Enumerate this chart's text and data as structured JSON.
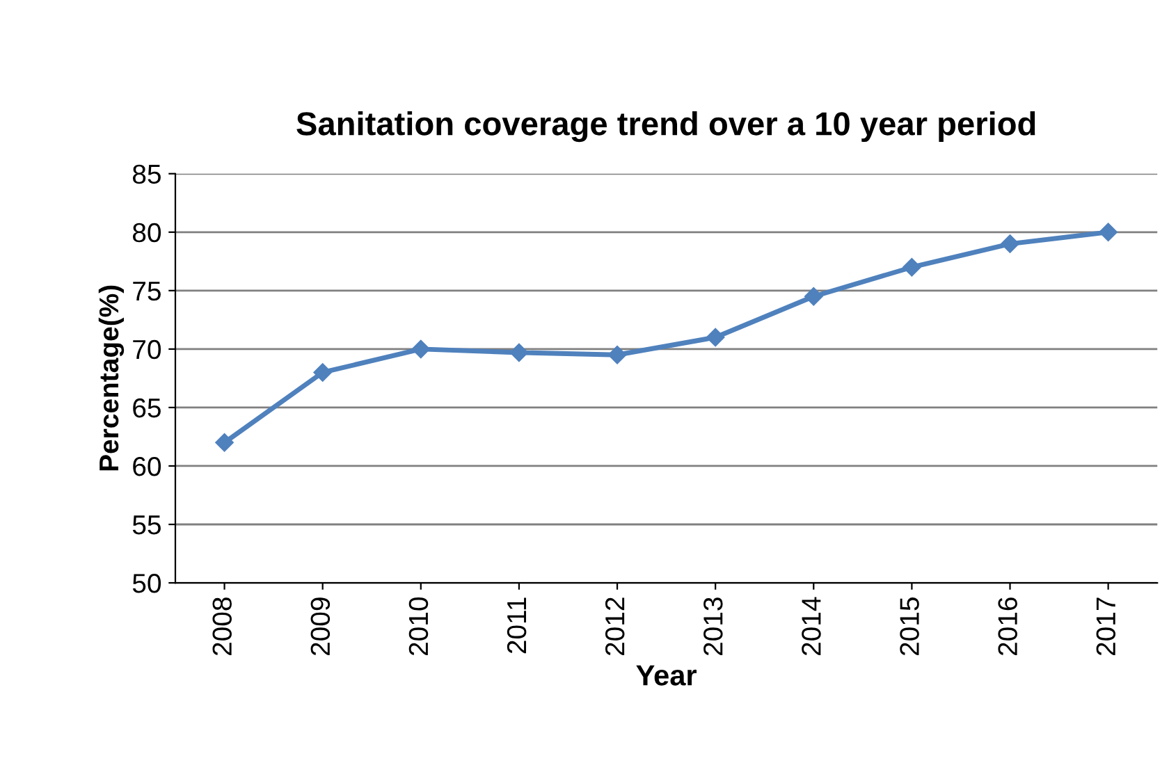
{
  "chart_data": {
    "type": "line",
    "title": "Sanitation coverage trend over a 10 year period",
    "xlabel": "Year",
    "ylabel": "Percentage(%)",
    "categories": [
      "2008",
      "2009",
      "2010",
      "2011",
      "2012",
      "2013",
      "2014",
      "2015",
      "2016",
      "2017"
    ],
    "series": [
      {
        "color": "#4f81bd",
        "values": [
          62,
          68,
          70,
          69.7,
          69.5,
          71,
          74.5,
          77,
          79,
          80
        ]
      }
    ],
    "ylim": [
      50,
      85
    ],
    "yticks": [
      50,
      55,
      60,
      65,
      70,
      75,
      80,
      85
    ],
    "grid": "y",
    "marker": "diamond",
    "line_style": "solid",
    "legend": false
  }
}
